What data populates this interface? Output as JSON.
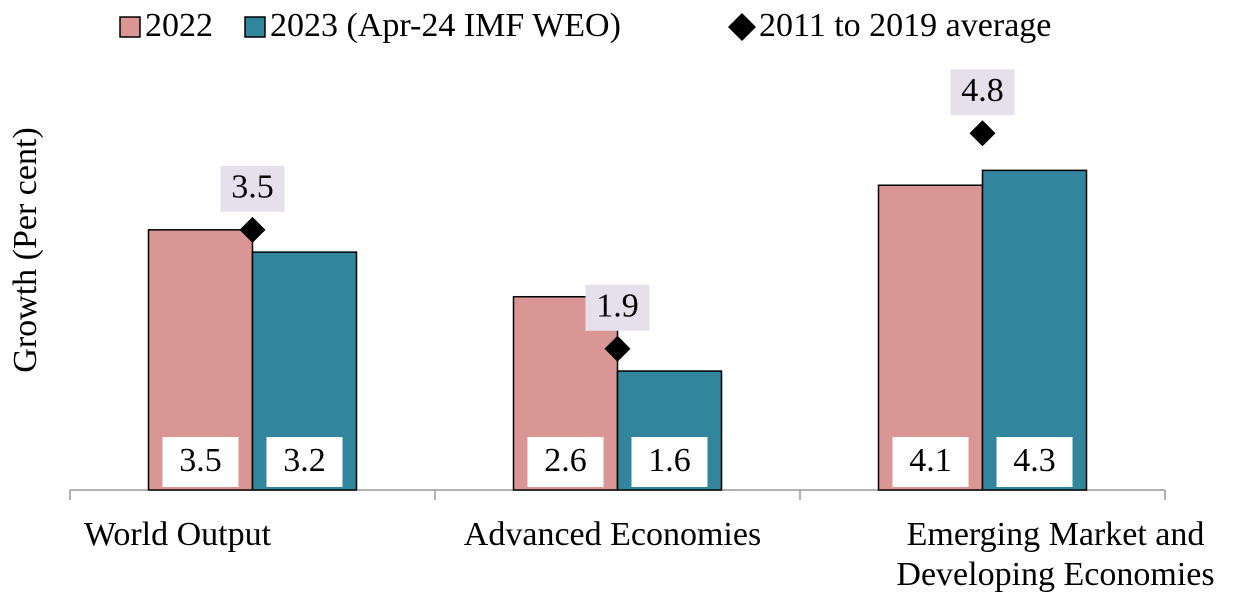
{
  "chart_data": {
    "type": "bar",
    "y_label": "Growth (Per cent)",
    "categories": [
      "World Output",
      "Advanced Economies",
      "Emerging Market and Developing Economies"
    ],
    "series": [
      {
        "name": "2022",
        "color": "#d99694",
        "values": [
          3.5,
          2.6,
          4.1
        ]
      },
      {
        "name": "2023 (Apr-24 IMF WEO)",
        "color": "#31859c",
        "values": [
          3.2,
          1.6,
          4.3
        ]
      },
      {
        "name": "2011 to 2019 average",
        "type": "scatter",
        "color": "#000000",
        "values": [
          3.5,
          1.9,
          4.8
        ]
      }
    ],
    "ylim": [
      0,
      6
    ],
    "grid": false
  }
}
